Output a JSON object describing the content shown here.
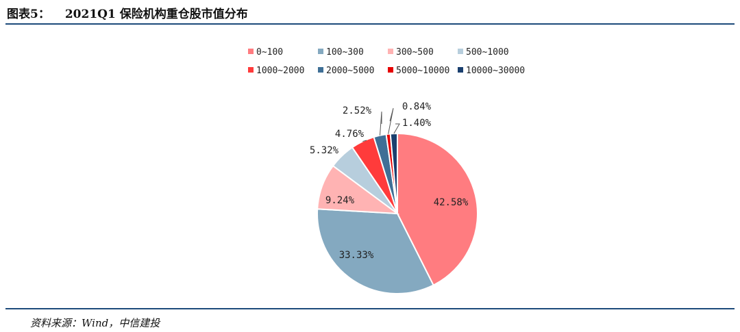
{
  "header": {
    "figure_number": "图表5：",
    "title": "2021Q1 保险机构重仓股市值分布"
  },
  "source": "资料来源：Wind，中信建投",
  "chart_data": {
    "type": "pie",
    "slices": [
      {
        "label": "0~100",
        "value": 42.58,
        "display": "42.58%",
        "color": "#ff7c80"
      },
      {
        "label": "100~300",
        "value": 33.33,
        "display": "33.33%",
        "color": "#84a9c0"
      },
      {
        "label": "300~500",
        "value": 9.24,
        "display": "9.24%",
        "color": "#ffb3b3"
      },
      {
        "label": "500~1000",
        "value": 5.32,
        "display": "5.32%",
        "color": "#b7cedd"
      },
      {
        "label": "1000~2000",
        "value": 4.76,
        "display": "4.76%",
        "color": "#ff3b3b"
      },
      {
        "label": "2000~5000",
        "value": 2.52,
        "display": "2.52%",
        "color": "#3f6f96"
      },
      {
        "label": "5000~10000",
        "value": 0.84,
        "display": "0.84%",
        "color": "#e60000"
      },
      {
        "label": "10000~30000",
        "value": 1.4,
        "display": "1.40%",
        "color": "#1a3f6e"
      }
    ],
    "legend_position": "top"
  }
}
